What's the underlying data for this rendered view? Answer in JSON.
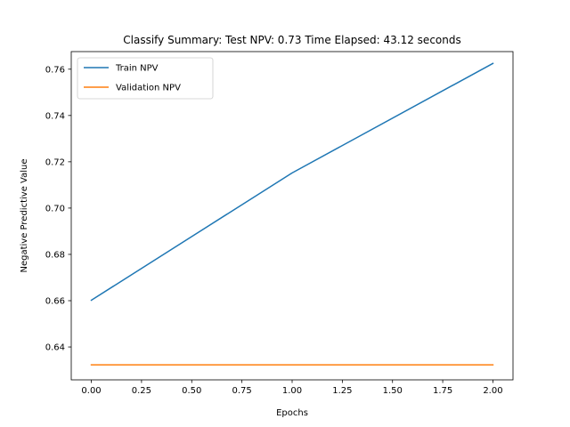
{
  "chart_data": {
    "type": "line",
    "title": "Classify Summary: Test NPV: 0.73 Time Elapsed: 43.12 seconds",
    "xlabel": "Epochs",
    "ylabel": "Negative Predictive Value",
    "x": [
      0,
      1,
      2
    ],
    "series": [
      {
        "name": "Train NPV",
        "values": [
          0.6602,
          0.7152,
          0.7625
        ],
        "color": "#1f77b4"
      },
      {
        "name": "Validation NPV",
        "values": [
          0.6323,
          0.6323,
          0.6323
        ],
        "color": "#ff7f0e"
      }
    ],
    "xlim": [
      -0.1,
      2.1
    ],
    "ylim": [
      0.6258,
      0.7676
    ],
    "xticks": [
      0.0,
      0.25,
      0.5,
      0.75,
      1.0,
      1.25,
      1.5,
      1.75,
      2.0
    ],
    "xtick_labels": [
      "0.00",
      "0.25",
      "0.50",
      "0.75",
      "1.00",
      "1.25",
      "1.50",
      "1.75",
      "2.00"
    ],
    "yticks": [
      0.64,
      0.66,
      0.68,
      0.7,
      0.72,
      0.74,
      0.76
    ],
    "ytick_labels": [
      "0.64",
      "0.66",
      "0.68",
      "0.70",
      "0.72",
      "0.74",
      "0.76"
    ],
    "grid": false,
    "legend_position": "top-left"
  }
}
